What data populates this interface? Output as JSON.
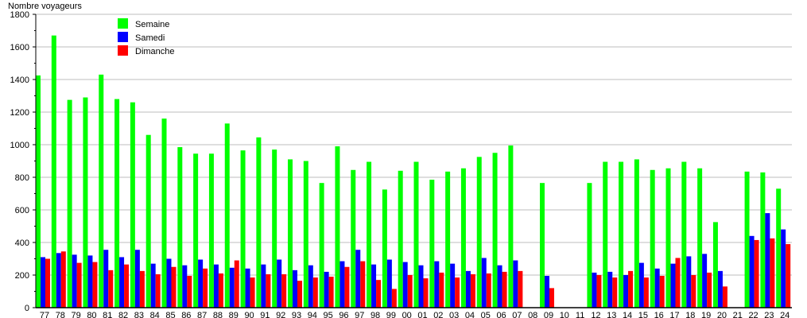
{
  "chart_data": {
    "type": "bar",
    "title": "",
    "ylabel": "Nombre voyageurs",
    "xlabel": "",
    "ylim": [
      0,
      1800
    ],
    "yticks": [
      0,
      200,
      400,
      600,
      800,
      1000,
      1200,
      1400,
      1600,
      1800
    ],
    "grid": true,
    "legend_position": "top-left",
    "categories": [
      "77",
      "78",
      "79",
      "80",
      "81",
      "82",
      "83",
      "84",
      "85",
      "86",
      "87",
      "88",
      "89",
      "90",
      "91",
      "92",
      "93",
      "94",
      "95",
      "96",
      "97",
      "98",
      "99",
      "00",
      "01",
      "02",
      "03",
      "04",
      "05",
      "06",
      "07",
      "08",
      "09",
      "10",
      "11",
      "12",
      "13",
      "14",
      "15",
      "16",
      "17",
      "18",
      "19",
      "20",
      "21",
      "22",
      "23",
      "24"
    ],
    "series": [
      {
        "name": "Semaine",
        "color": "#00ff00",
        "values": [
          1425,
          1670,
          1275,
          1290,
          1430,
          1280,
          1260,
          1060,
          1160,
          985,
          945,
          945,
          1130,
          965,
          1045,
          970,
          910,
          900,
          765,
          990,
          845,
          895,
          725,
          840,
          895,
          785,
          835,
          855,
          925,
          950,
          995,
          0,
          765,
          0,
          0,
          765,
          895,
          895,
          910,
          845,
          855,
          895,
          855,
          525,
          0,
          835,
          830,
          730
        ]
      },
      {
        "name": "Samedi",
        "color": "#0000ff",
        "values": [
          310,
          335,
          325,
          320,
          355,
          310,
          355,
          270,
          300,
          260,
          295,
          265,
          245,
          240,
          265,
          295,
          230,
          260,
          220,
          285,
          355,
          265,
          295,
          280,
          260,
          285,
          270,
          225,
          305,
          260,
          290,
          0,
          195,
          0,
          0,
          215,
          220,
          200,
          275,
          240,
          270,
          315,
          330,
          225,
          0,
          440,
          580,
          480
        ]
      },
      {
        "name": "Dimanche",
        "color": "#ff0000",
        "values": [
          300,
          345,
          275,
          280,
          230,
          265,
          225,
          205,
          250,
          195,
          240,
          210,
          290,
          185,
          205,
          205,
          165,
          185,
          190,
          250,
          285,
          170,
          115,
          200,
          180,
          215,
          185,
          205,
          210,
          220,
          225,
          0,
          120,
          0,
          0,
          200,
          185,
          225,
          185,
          195,
          305,
          200,
          215,
          130,
          0,
          415,
          425,
          390
        ]
      }
    ]
  }
}
